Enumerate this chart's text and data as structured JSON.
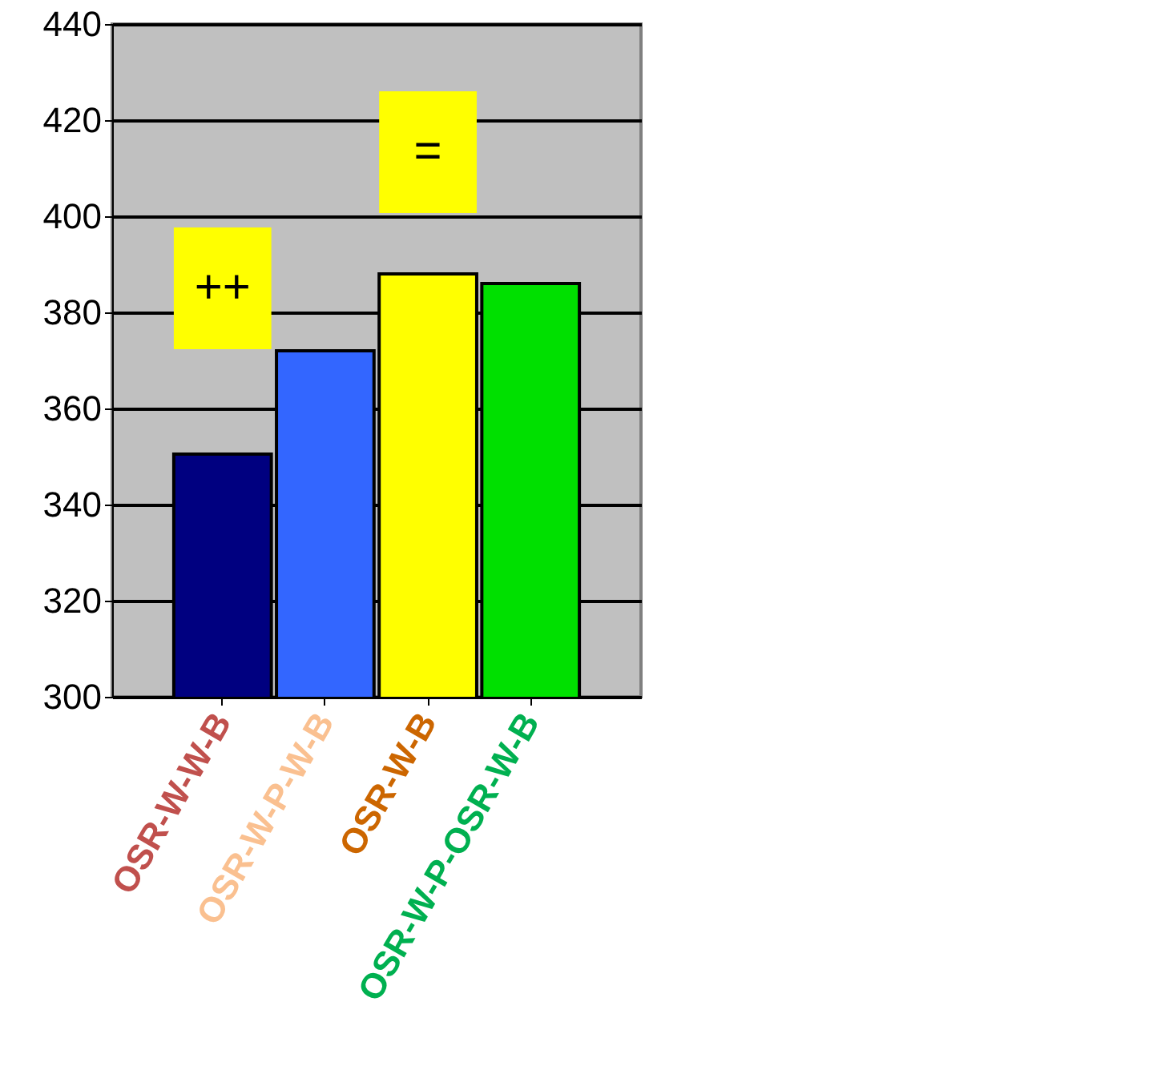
{
  "chart_data": {
    "type": "bar",
    "categories": [
      "OSR-W-W-B",
      "OSR-W-P-W-B",
      "OSR-W-B",
      "OSR-W-P-OSR-W-B"
    ],
    "values": [
      350.5,
      372,
      388,
      386
    ],
    "colors": [
      "#000080",
      "#3366ff",
      "#ffff00",
      "#00e000"
    ],
    "ylim": [
      300,
      440
    ],
    "yticks": [
      300,
      320,
      340,
      360,
      380,
      400,
      420,
      440
    ],
    "grid": "y",
    "annotations": [
      "++",
      "="
    ]
  }
}
